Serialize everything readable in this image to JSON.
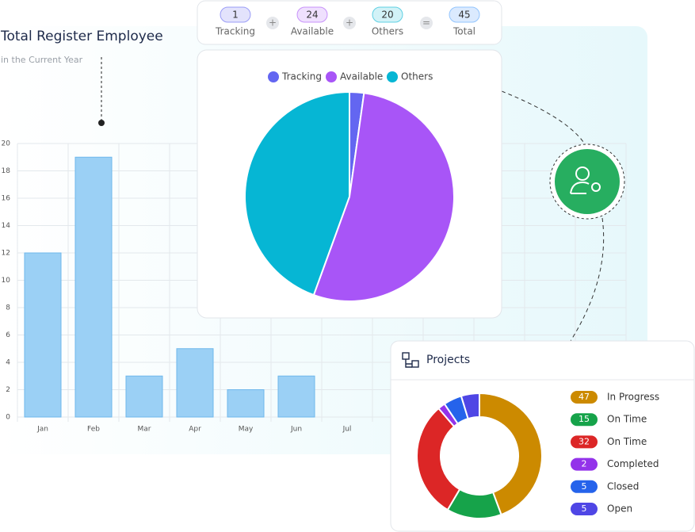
{
  "chart_data": [
    {
      "type": "bar",
      "title": "Total Register Employee",
      "subtitle": "in the Current Year",
      "categories": [
        "Jan",
        "Feb",
        "Mar",
        "Apr",
        "May",
        "Jun",
        "Jul"
      ],
      "values": [
        12,
        19,
        3,
        5,
        2,
        3,
        0
      ],
      "color": "#9bd0f5",
      "ylim": [
        0,
        20
      ],
      "yticks": [
        0,
        2,
        4,
        6,
        8,
        10,
        12,
        14,
        16,
        18,
        20
      ],
      "grid": true
    },
    {
      "type": "pie",
      "categories": [
        "Tracking",
        "Available",
        "Others"
      ],
      "values": [
        1,
        24,
        20
      ],
      "colors": [
        "#6366f1",
        "#a855f7",
        "#06b6d4"
      ],
      "total": 45,
      "total_label": "Total",
      "legend": "top"
    },
    {
      "type": "donut",
      "title": "Projects",
      "categories": [
        "In Progress",
        "On Time",
        "On Time",
        "Completed",
        "Closed",
        "Open"
      ],
      "values": [
        47,
        15,
        32,
        2,
        5,
        5
      ],
      "colors": [
        "#cc8a00",
        "#16a34a",
        "#dc2626",
        "#9333ea",
        "#2563eb",
        "#4f46e5"
      ],
      "legend": "right"
    }
  ]
}
